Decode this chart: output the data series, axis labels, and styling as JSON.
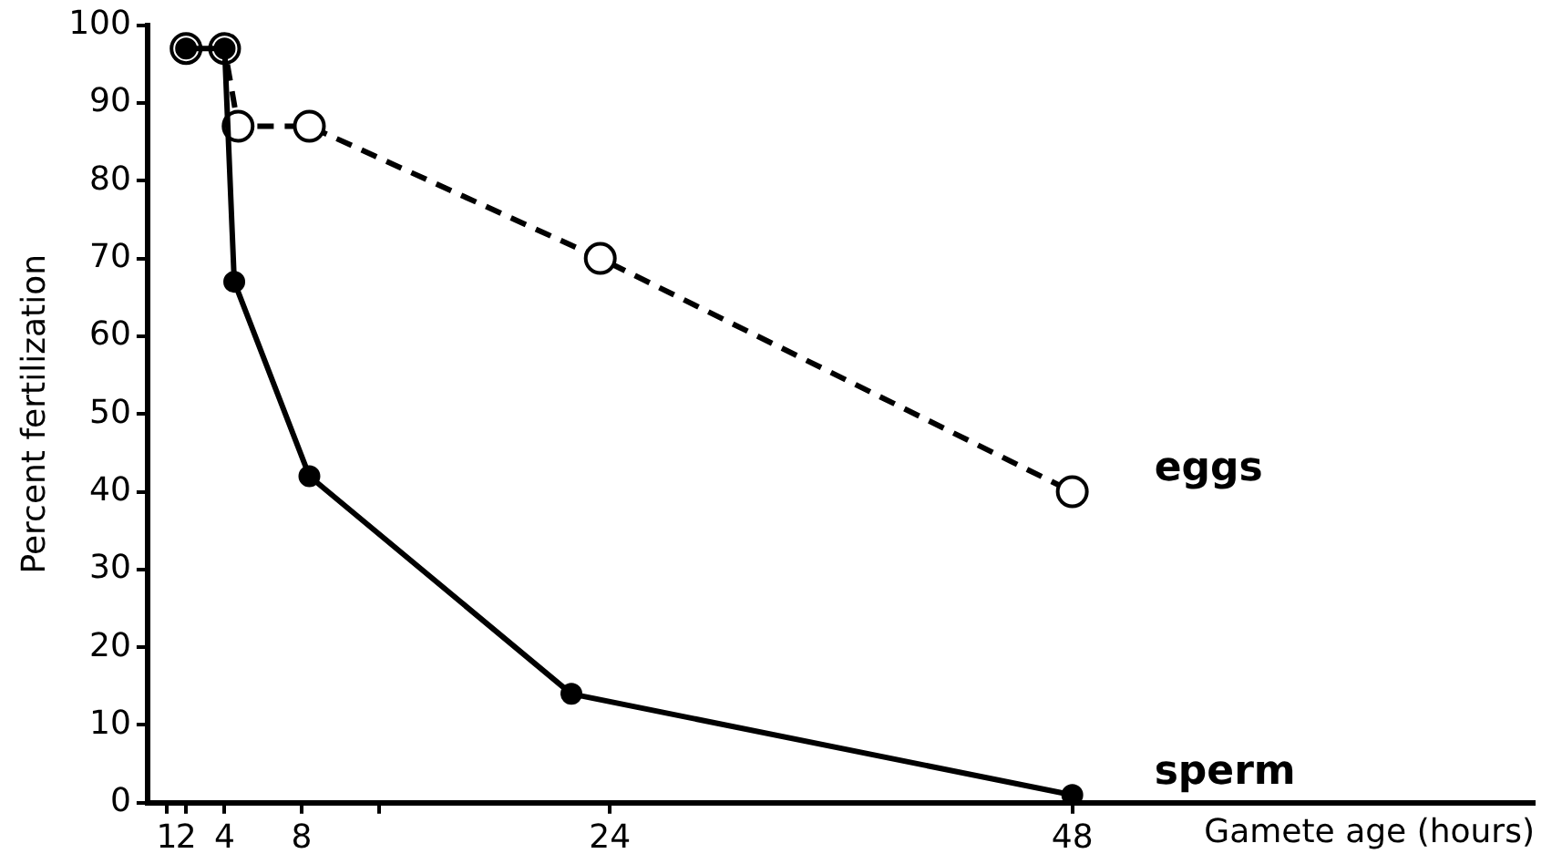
{
  "chart_data": {
    "type": "line",
    "xlabel": "Gamete age (hours)",
    "ylabel": "Percent fertilization",
    "xlim": [
      0,
      72
    ],
    "xticks": [
      1,
      2,
      4,
      8,
      {
        "value": 12,
        "label": null
      },
      24,
      48
    ],
    "ylim": [
      0,
      100
    ],
    "yticks": [
      0,
      10,
      20,
      30,
      40,
      50,
      60,
      70,
      80,
      90,
      100
    ],
    "grid": false,
    "legend": false,
    "marker": "circle",
    "series": [
      {
        "name": "eggs",
        "color": "#000000",
        "line_style": "dashed",
        "x": [
          2,
          4,
          4.7,
          8.4,
          23.5,
          48
        ],
        "values": [
          97,
          97,
          87,
          87,
          70,
          40
        ]
      },
      {
        "name": "sperm",
        "color": "#000000",
        "line_style": "solid",
        "x": [
          2,
          4,
          4.5,
          8.4,
          22,
          48
        ],
        "values": [
          97,
          97,
          67,
          42,
          14,
          1
        ]
      }
    ]
  }
}
